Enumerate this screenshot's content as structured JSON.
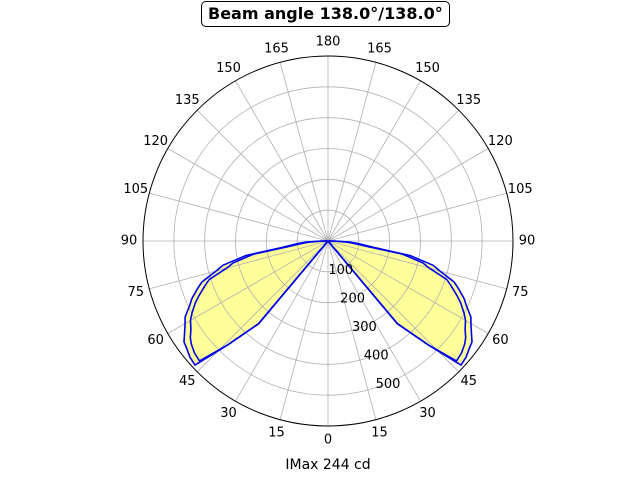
{
  "chart_data": {
    "type": "polar-line",
    "title": "Beam angle 138.0°/138.0°",
    "xlabel": "IMax 244 cd",
    "angle_tick_labels": [
      "0",
      "15",
      "30",
      "45",
      "60",
      "75",
      "90",
      "105",
      "120",
      "135",
      "150",
      "165",
      "180",
      "165",
      "150",
      "135",
      "120",
      "105",
      "90",
      "75",
      "60",
      "45",
      "30",
      "15"
    ],
    "radial_ticks": [
      100,
      200,
      300,
      400,
      500
    ],
    "rlim": [
      0,
      600
    ],
    "grid": true,
    "fill_color": "#ffff99",
    "line_color": "#0000ee",
    "series": [
      {
        "angles_deg": [
          0,
          15,
          25,
          35,
          40,
          44,
          47,
          50,
          53,
          55,
          57,
          60,
          62,
          65,
          67,
          70,
          72,
          75,
          77,
          80,
          82,
          85,
          87,
          90,
          92,
          95
        ],
        "values": [
          0,
          0,
          0,
          0,
          350,
          470,
          590,
          585,
          575,
          570,
          555,
          535,
          525,
          495,
          480,
          450,
          430,
          375,
          350,
          270,
          150,
          100,
          70,
          20,
          0,
          0
        ]
      },
      {
        "angles_deg": [
          0,
          15,
          25,
          35,
          40,
          44,
          47,
          50,
          53,
          55,
          57,
          60,
          62,
          65,
          67,
          70,
          72,
          75,
          77,
          80,
          82,
          85,
          87,
          90,
          92,
          95
        ],
        "values": [
          0,
          0,
          0,
          0,
          350,
          470,
          570,
          565,
          555,
          545,
          530,
          515,
          500,
          475,
          455,
          425,
          405,
          340,
          315,
          245,
          130,
          80,
          55,
          15,
          0,
          0
        ]
      }
    ]
  }
}
